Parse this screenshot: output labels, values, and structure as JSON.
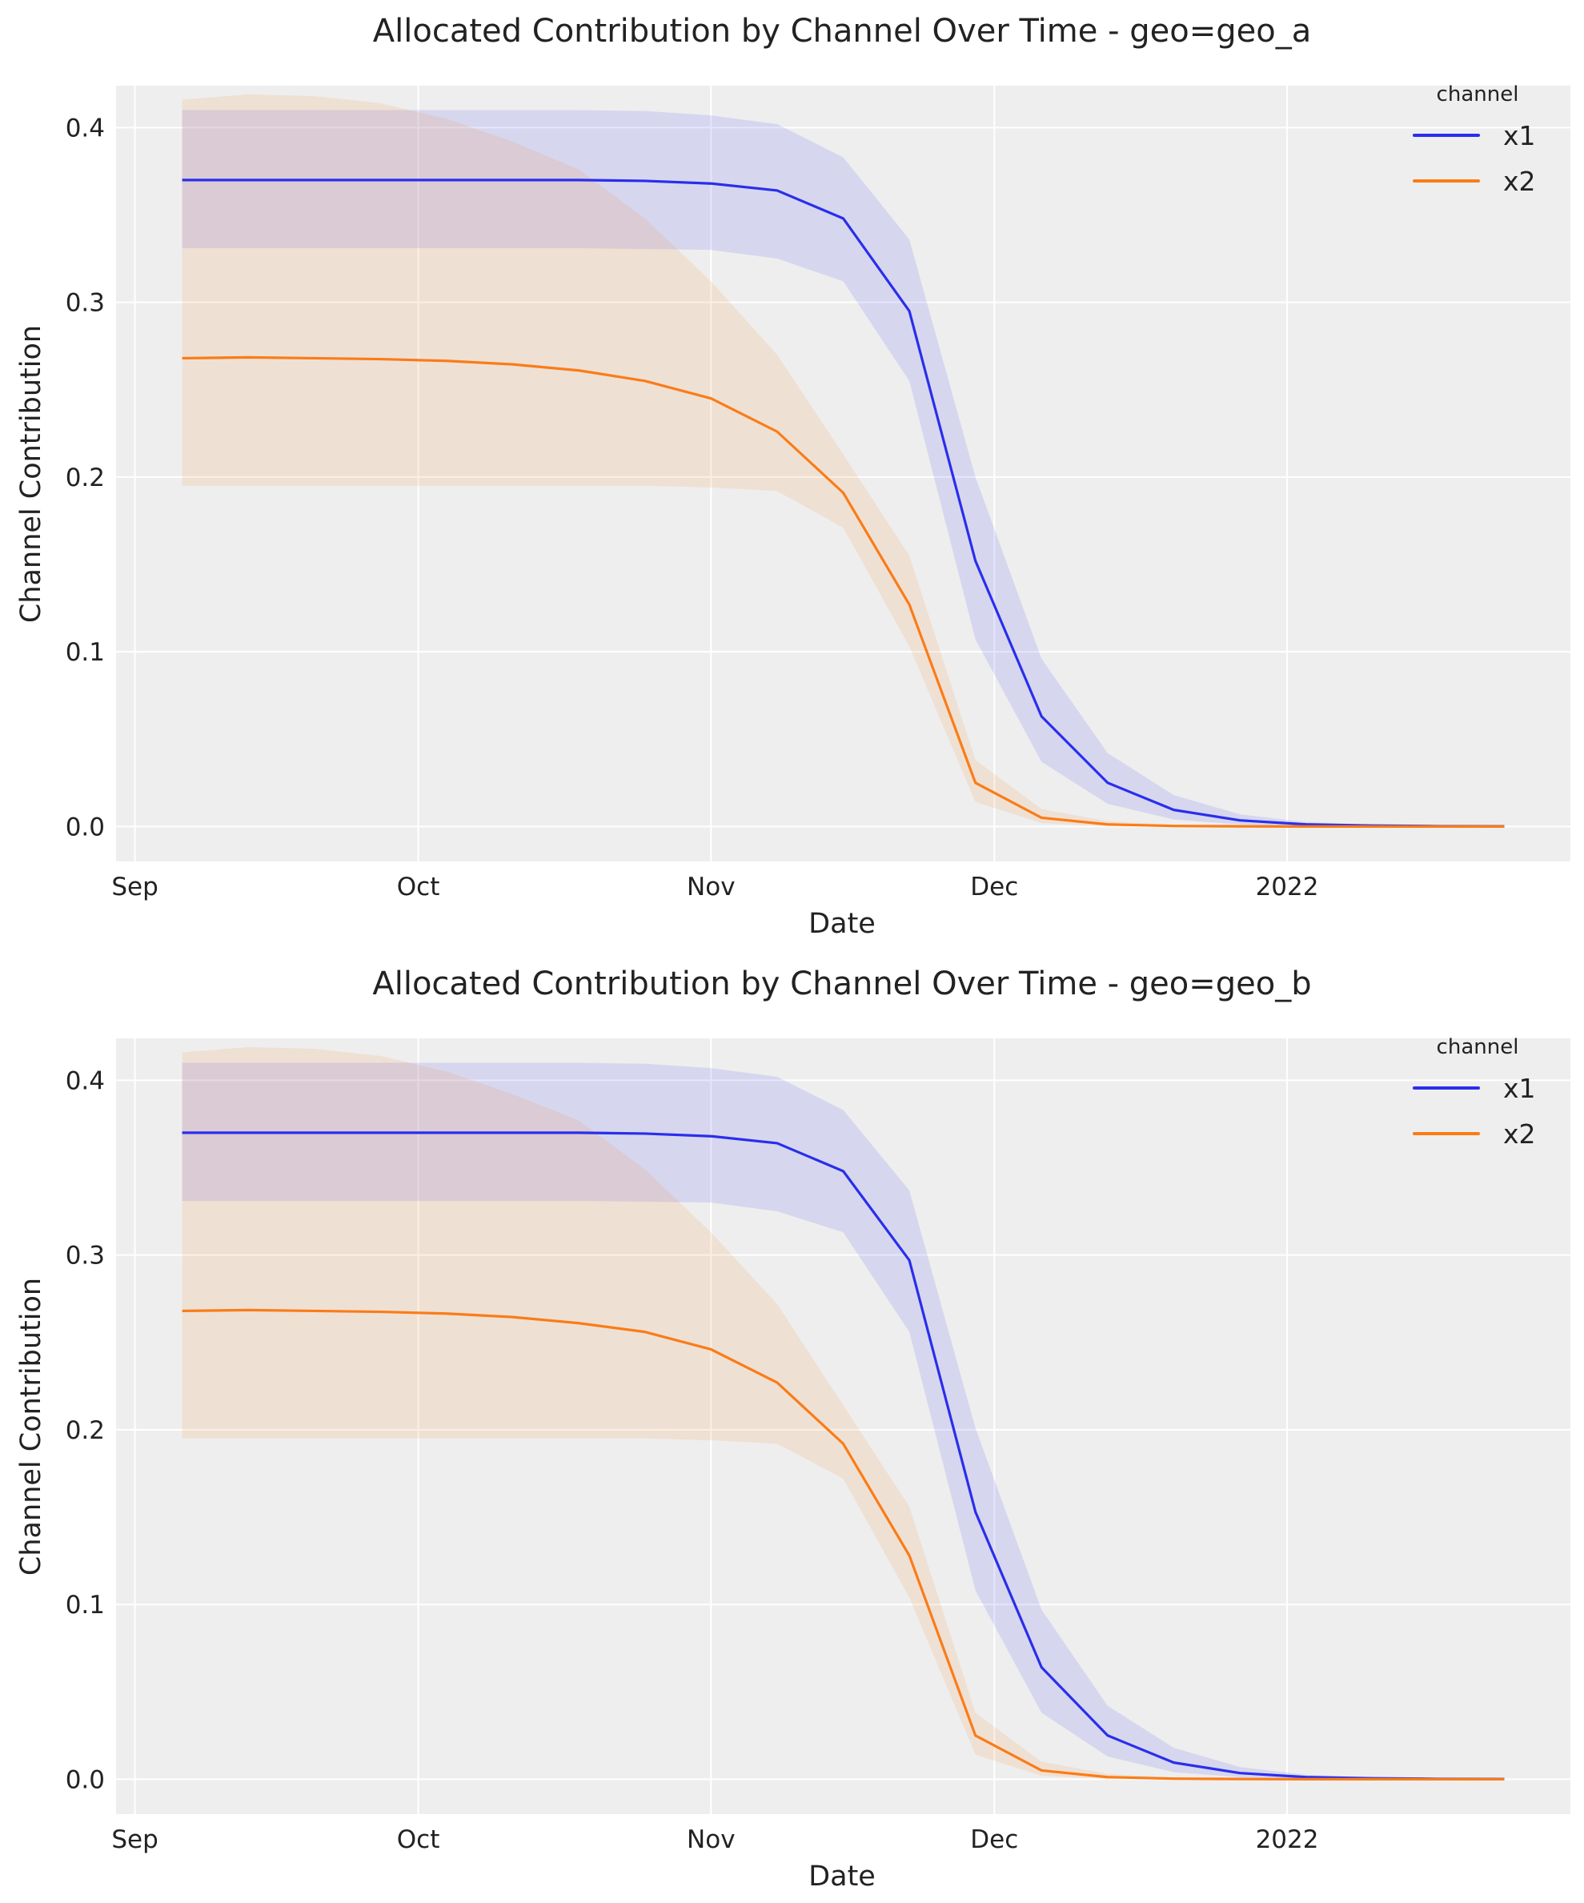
{
  "colors": {
    "x1": "#2a2eec",
    "x2": "#fa7c17",
    "background": "#eeeeee",
    "grid": "#ffffff"
  },
  "chart_data": [
    {
      "type": "line",
      "title": "Allocated Contribution by Channel Over Time - geo=geo_a",
      "xlabel": "Date",
      "ylabel": "Channel Contribution",
      "xlim": [
        "2021-08-30",
        "2022-01-31"
      ],
      "ylim": [
        -0.02,
        0.424
      ],
      "grid": true,
      "legend": {
        "title": "channel",
        "placement": "top-right"
      },
      "xticks": [
        {
          "date": "2021-09-01",
          "label": "Sep"
        },
        {
          "date": "2021-10-01",
          "label": "Oct"
        },
        {
          "date": "2021-11-01",
          "label": "Nov"
        },
        {
          "date": "2021-12-01",
          "label": "Dec"
        },
        {
          "date": "2022-01-01",
          "label": "2022"
        }
      ],
      "yticks": [
        0.0,
        0.1,
        0.2,
        0.3,
        0.4
      ],
      "ytick_labels": [
        "0.0",
        "0.1",
        "0.2",
        "0.3",
        "0.4"
      ],
      "x": [
        "2021-09-06",
        "2021-09-13",
        "2021-09-20",
        "2021-09-27",
        "2021-10-04",
        "2021-10-11",
        "2021-10-18",
        "2021-10-25",
        "2021-11-01",
        "2021-11-08",
        "2021-11-15",
        "2021-11-22",
        "2021-11-29",
        "2021-12-06",
        "2021-12-13",
        "2021-12-20",
        "2021-12-27",
        "2022-01-03",
        "2022-01-10",
        "2022-01-17",
        "2022-01-24"
      ],
      "series": [
        {
          "name": "x1",
          "mean": [
            0.37,
            0.37,
            0.37,
            0.37,
            0.37,
            0.37,
            0.37,
            0.3695,
            0.368,
            0.364,
            0.348,
            0.295,
            0.152,
            0.063,
            0.025,
            0.0095,
            0.0035,
            0.0012,
            0.0005,
            0.0002,
            0.0001
          ],
          "upper": [
            0.41,
            0.41,
            0.41,
            0.41,
            0.41,
            0.41,
            0.41,
            0.4095,
            0.407,
            0.402,
            0.383,
            0.336,
            0.2,
            0.096,
            0.042,
            0.018,
            0.007,
            0.0025,
            0.001,
            0.0004,
            0.0002
          ],
          "lower": [
            0.331,
            0.331,
            0.331,
            0.331,
            0.331,
            0.331,
            0.331,
            0.3305,
            0.33,
            0.325,
            0.312,
            0.255,
            0.107,
            0.037,
            0.013,
            0.004,
            0.0012,
            0.0003,
            0,
            0,
            0
          ]
        },
        {
          "name": "x2",
          "mean": [
            0.268,
            0.2685,
            0.268,
            0.2675,
            0.2665,
            0.2645,
            0.261,
            0.255,
            0.245,
            0.226,
            0.191,
            0.127,
            0.025,
            0.005,
            0.0012,
            0.0003,
            0.0001,
            0,
            0,
            0,
            0
          ],
          "upper": [
            0.416,
            0.419,
            0.418,
            0.414,
            0.405,
            0.392,
            0.376,
            0.348,
            0.312,
            0.27,
            0.213,
            0.155,
            0.038,
            0.01,
            0.003,
            0.001,
            0.0003,
            0,
            0,
            0,
            0
          ],
          "lower": [
            0.195,
            0.195,
            0.195,
            0.195,
            0.195,
            0.195,
            0.195,
            0.195,
            0.194,
            0.192,
            0.171,
            0.103,
            0.014,
            0.002,
            0,
            0,
            0,
            0,
            0,
            0,
            0
          ]
        }
      ]
    },
    {
      "type": "line",
      "title": "Allocated Contribution by Channel Over Time - geo=geo_b",
      "xlabel": "Date",
      "ylabel": "Channel Contribution",
      "xlim": [
        "2021-08-30",
        "2022-01-31"
      ],
      "ylim": [
        -0.02,
        0.424
      ],
      "grid": true,
      "legend": {
        "title": "channel",
        "placement": "top-right"
      },
      "xticks": [
        {
          "date": "2021-09-01",
          "label": "Sep"
        },
        {
          "date": "2021-10-01",
          "label": "Oct"
        },
        {
          "date": "2021-11-01",
          "label": "Nov"
        },
        {
          "date": "2021-12-01",
          "label": "Dec"
        },
        {
          "date": "2022-01-01",
          "label": "2022"
        }
      ],
      "yticks": [
        0.0,
        0.1,
        0.2,
        0.3,
        0.4
      ],
      "ytick_labels": [
        "0.0",
        "0.1",
        "0.2",
        "0.3",
        "0.4"
      ],
      "x": [
        "2021-09-06",
        "2021-09-13",
        "2021-09-20",
        "2021-09-27",
        "2021-10-04",
        "2021-10-11",
        "2021-10-18",
        "2021-10-25",
        "2021-11-01",
        "2021-11-08",
        "2021-11-15",
        "2021-11-22",
        "2021-11-29",
        "2021-12-06",
        "2021-12-13",
        "2021-12-20",
        "2021-12-27",
        "2022-01-03",
        "2022-01-10",
        "2022-01-17",
        "2022-01-24"
      ],
      "series": [
        {
          "name": "x1",
          "mean": [
            0.37,
            0.37,
            0.37,
            0.37,
            0.37,
            0.37,
            0.37,
            0.3695,
            0.368,
            0.364,
            0.348,
            0.297,
            0.153,
            0.064,
            0.025,
            0.0095,
            0.0035,
            0.0012,
            0.0005,
            0.0002,
            0.0001
          ],
          "upper": [
            0.41,
            0.41,
            0.41,
            0.41,
            0.41,
            0.41,
            0.41,
            0.4095,
            0.407,
            0.402,
            0.383,
            0.337,
            0.201,
            0.097,
            0.042,
            0.018,
            0.007,
            0.0025,
            0.001,
            0.0004,
            0.0002
          ],
          "lower": [
            0.331,
            0.331,
            0.331,
            0.331,
            0.331,
            0.331,
            0.331,
            0.3305,
            0.33,
            0.325,
            0.313,
            0.256,
            0.108,
            0.038,
            0.013,
            0.004,
            0.0012,
            0.0003,
            0,
            0,
            0
          ]
        },
        {
          "name": "x2",
          "mean": [
            0.268,
            0.2685,
            0.268,
            0.2675,
            0.2665,
            0.2645,
            0.261,
            0.256,
            0.246,
            0.227,
            0.192,
            0.128,
            0.025,
            0.005,
            0.0012,
            0.0003,
            0.0001,
            0,
            0,
            0,
            0
          ],
          "upper": [
            0.416,
            0.419,
            0.418,
            0.414,
            0.405,
            0.392,
            0.377,
            0.349,
            0.313,
            0.272,
            0.214,
            0.156,
            0.038,
            0.01,
            0.003,
            0.001,
            0.0003,
            0,
            0,
            0,
            0
          ],
          "lower": [
            0.195,
            0.195,
            0.195,
            0.195,
            0.195,
            0.195,
            0.195,
            0.195,
            0.194,
            0.192,
            0.172,
            0.104,
            0.014,
            0.002,
            0,
            0,
            0,
            0,
            0,
            0,
            0
          ]
        }
      ]
    }
  ]
}
